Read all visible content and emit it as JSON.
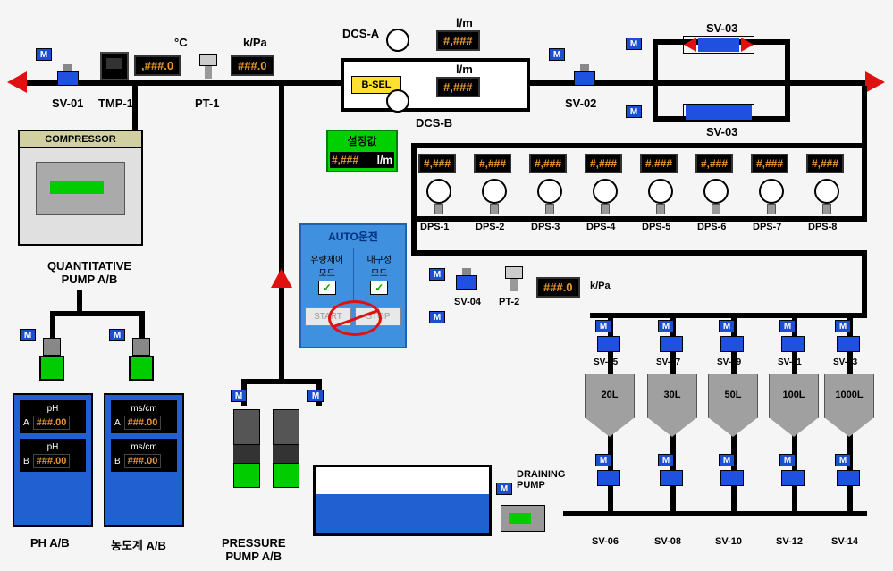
{
  "colors": {
    "pipe": "#000000",
    "display_bg": "#000000",
    "display_fg": "#e89830",
    "accent_blue": "#2050e0",
    "m_indicator": "#1a4fd0",
    "green": "#00d000",
    "red": "#e01010",
    "tank_water": "#2060d0",
    "hopper_gray": "#a0a0a0"
  },
  "top_row": {
    "sv01": {
      "label": "SV-01"
    },
    "tmp1": {
      "label": "TMP-1",
      "unit": "°C",
      "value": ",###.0"
    },
    "pt1": {
      "label": "PT-1",
      "unit": "k/Pa",
      "value": "###.0"
    },
    "dcsa": {
      "label": "DCS-A",
      "unit": "l/m",
      "value": "#,###"
    },
    "dcsb": {
      "label": "DCS-B",
      "unit": "l/m",
      "value": "#,###"
    },
    "bsel": {
      "label": "B-SEL"
    },
    "sv02": {
      "label": "SV-02"
    },
    "sv03_top": {
      "label": "SV-03"
    },
    "sv03_bot": {
      "label": "SV-03"
    }
  },
  "compressor": {
    "title": "COMPRESSOR"
  },
  "quant_pump": {
    "title": "QUANTITATIVE\nPUMP A/B"
  },
  "setpoint": {
    "title": "설정값",
    "value": "#,###",
    "unit": "l/m"
  },
  "auto": {
    "title": "AUTO운전",
    "mode1": "유량제어\n모드",
    "mode2": "내구성\n모드",
    "start": "START",
    "stop": "STOP"
  },
  "dps": [
    {
      "label": "DPS-1",
      "value": "#,###"
    },
    {
      "label": "DPS-2",
      "value": "#,###"
    },
    {
      "label": "DPS-3",
      "value": "#,###"
    },
    {
      "label": "DPS-4",
      "value": "#,###"
    },
    {
      "label": "DPS-5",
      "value": "#,###"
    },
    {
      "label": "DPS-6",
      "value": "#,###"
    },
    {
      "label": "DPS-7",
      "value": "#,###"
    },
    {
      "label": "DPS-8",
      "value": "#,###"
    }
  ],
  "pt2": {
    "label": "PT-2",
    "unit": "k/Pa",
    "value": "###.0"
  },
  "sv04": {
    "label": "SV-04"
  },
  "top_valve_row": [
    {
      "label": "SV-05"
    },
    {
      "label": "SV-07"
    },
    {
      "label": "SV-09"
    },
    {
      "label": "SV-11"
    },
    {
      "label": "SV-13"
    }
  ],
  "hoppers": [
    {
      "label": "20L"
    },
    {
      "label": "30L"
    },
    {
      "label": "50L"
    },
    {
      "label": "100L"
    },
    {
      "label": "1000L"
    }
  ],
  "bot_valve_row": [
    {
      "label": "SV-06"
    },
    {
      "label": "SV-08"
    },
    {
      "label": "SV-10"
    },
    {
      "label": "SV-12"
    },
    {
      "label": "SV-14"
    }
  ],
  "ph_tank": {
    "label": "PH A/B",
    "unit": "pH",
    "a_label": "A",
    "a_value": "###.00",
    "b_label": "B",
    "b_value": "###.00"
  },
  "cond_tank": {
    "label": "농도계 A/B",
    "unit": "ms/cm",
    "a_label": "A",
    "a_value": "###.00",
    "b_label": "B",
    "b_value": "###.00"
  },
  "pressure_pump": {
    "label": "PRESSURE\nPUMP A/B"
  },
  "drain_pump": {
    "label": "DRAINING\nPUMP"
  }
}
